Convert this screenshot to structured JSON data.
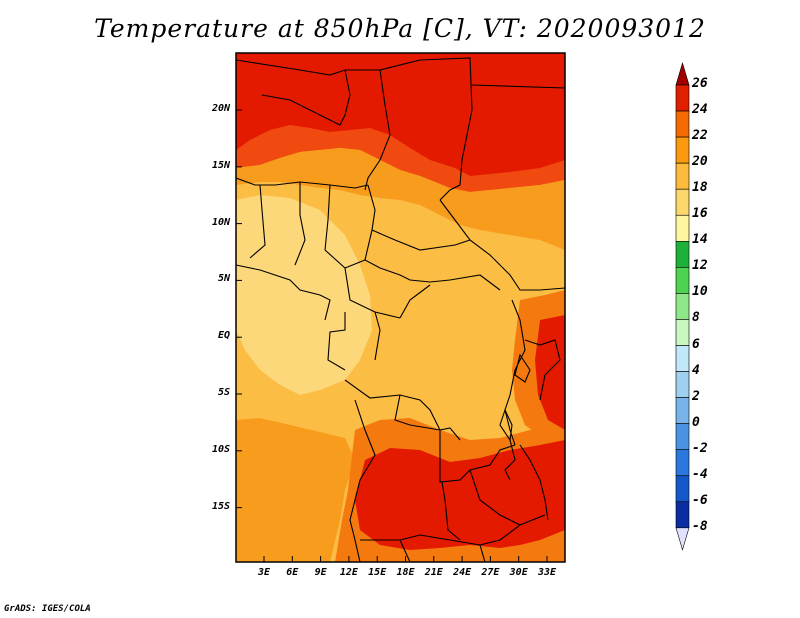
{
  "title": "Temperature at 850hPa [C], VT: 2020093012",
  "credit": "GrADS: IGES/COLA",
  "map": {
    "lat_labels": [
      "20N",
      "15N",
      "10N",
      "5N",
      "EQ",
      "5S",
      "10S",
      "15S"
    ],
    "lon_labels": [
      "3E",
      "6E",
      "9E",
      "12E",
      "15E",
      "18E",
      "21E",
      "24E",
      "27E",
      "30E",
      "33E"
    ]
  },
  "colorbar": {
    "labels": [
      "26",
      "24",
      "22",
      "20",
      "18",
      "16",
      "14",
      "12",
      "10",
      "8",
      "6",
      "4",
      "2",
      "0",
      "-2",
      "-4",
      "-6",
      "-8"
    ],
    "colors": [
      "#a00000",
      "#e01e00",
      "#f26a00",
      "#fa9a10",
      "#fbbb3c",
      "#fbd76e",
      "#fff6a0",
      "#1fb03c",
      "#4fd250",
      "#8ee88a",
      "#c8f8c0",
      "#c0e8f8",
      "#a0d0f0",
      "#78b4ea",
      "#4a92e4",
      "#2a78dc",
      "#1458c8",
      "#0a2ea0",
      "#080878",
      "#e0e0ff"
    ]
  },
  "field_colors": {
    "t26": "#e41a00",
    "t24": "#f04a10",
    "t22": "#f47a10",
    "t20": "#f89c1e",
    "t18": "#fbbd44",
    "t16": "#fcd87a"
  }
}
